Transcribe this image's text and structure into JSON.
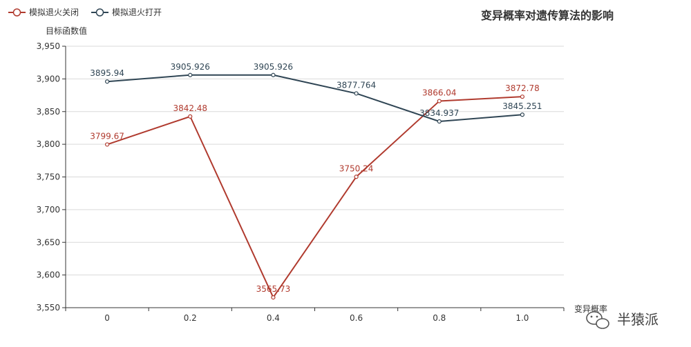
{
  "chart_data": {
    "type": "line",
    "title": "变异概率对遗传算法的影响",
    "xlabel": "变异概率",
    "ylabel": "目标函数值",
    "categories": [
      "0",
      "0.2",
      "0.4",
      "0.6",
      "0.8",
      "1.0"
    ],
    "ylim": [
      3550,
      3950
    ],
    "yticks": [
      3550,
      3600,
      3650,
      3700,
      3750,
      3800,
      3850,
      3900,
      3950
    ],
    "grid": true,
    "legend": "top-left",
    "series": [
      {
        "name": "模拟退火关闭",
        "color": "#b03a2e",
        "values": [
          3799.67,
          3842.48,
          3565.73,
          3750.24,
          3866.04,
          3872.78
        ],
        "labels": [
          "3799.67",
          "3842.48",
          "3565.73",
          "3750.24",
          "3866.04",
          "3872.78"
        ]
      },
      {
        "name": "模拟退火打开",
        "color": "#2f4554",
        "values": [
          3895.94,
          3905.926,
          3905.926,
          3877.764,
          3834.937,
          3845.251
        ],
        "labels": [
          "3895.94",
          "3905.926",
          "3905.926",
          "3877.764",
          "3834.937",
          "3845.251"
        ]
      }
    ]
  },
  "watermark": {
    "text": "半猿派",
    "icon": "wechat-icon"
  }
}
